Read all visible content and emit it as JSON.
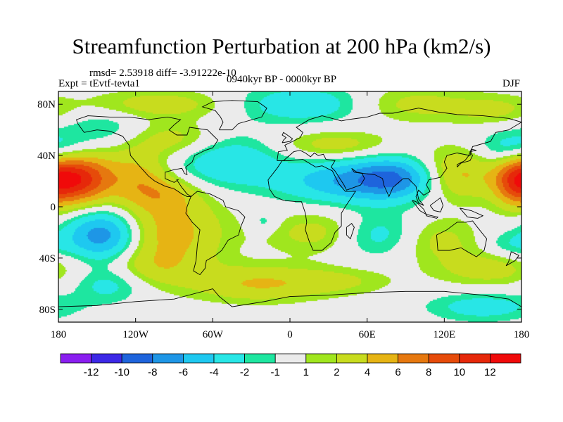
{
  "chart_data": {
    "type": "heatmap",
    "title": "Streamfunction Perturbation at 200 hPa (km2/s)",
    "stats_text": "rmsd= 2.53918  diff= -3.91222e-10",
    "left_label": "Expt = tEvtf-tevta1",
    "center_label": "0940kyr BP - 0000kyr BP",
    "right_label": "DJF",
    "x_range": [
      -180,
      180
    ],
    "y_range": [
      -90,
      90
    ],
    "x_ticks": [
      {
        "value": -180,
        "label": "180"
      },
      {
        "value": -120,
        "label": "120W"
      },
      {
        "value": -60,
        "label": "60W"
      },
      {
        "value": 0,
        "label": "0"
      },
      {
        "value": 60,
        "label": "60E"
      },
      {
        "value": 120,
        "label": "120E"
      },
      {
        "value": 180,
        "label": "180"
      }
    ],
    "y_ticks": [
      {
        "value": 80,
        "label": "80N"
      },
      {
        "value": 40,
        "label": "40N"
      },
      {
        "value": 0,
        "label": "0"
      },
      {
        "value": -40,
        "label": "40S"
      },
      {
        "value": -80,
        "label": "80S"
      }
    ],
    "colorbar": {
      "levels": [
        -12,
        -10,
        -8,
        -6,
        -4,
        -2,
        -1,
        1,
        2,
        4,
        6,
        8,
        10,
        12
      ],
      "labels": [
        "-12",
        "-10",
        "-8",
        "-6",
        "-4",
        "-2",
        "-1",
        "1",
        "2",
        "4",
        "6",
        "8",
        "10",
        "12"
      ],
      "colors": [
        "#8a1ef0",
        "#3c28e6",
        "#1e64dc",
        "#1e96e6",
        "#1ec8f0",
        "#28e6e6",
        "#1ee6a0",
        "#ebebeb",
        "#a0e61e",
        "#c8dc1e",
        "#e6b414",
        "#e6780f",
        "#e64b0a",
        "#e6280a",
        "#f00a0a"
      ]
    },
    "anomaly_centers": [
      {
        "lon": -165,
        "lat": 22,
        "amp": 11,
        "slon": 18,
        "slat": 14
      },
      {
        "lon": -145,
        "lat": -22,
        "amp": -8,
        "slon": 20,
        "slat": 14
      },
      {
        "lon": -95,
        "lat": -20,
        "amp": 5,
        "slon": 30,
        "slat": 22
      },
      {
        "lon": -120,
        "lat": 25,
        "amp": 4,
        "slon": 18,
        "slat": 14
      },
      {
        "lon": -100,
        "lat": 10,
        "amp": 3,
        "slon": 20,
        "slat": 10
      },
      {
        "lon": -50,
        "lat": 35,
        "amp": -4,
        "slon": 30,
        "slat": 14
      },
      {
        "lon": -90,
        "lat": 52,
        "amp": 3,
        "slon": 25,
        "slat": 10
      },
      {
        "lon": -145,
        "lat": 62,
        "amp": -2,
        "slon": 22,
        "slat": 10
      },
      {
        "lon": -100,
        "lat": 80,
        "amp": 3,
        "slon": 40,
        "slat": 8
      },
      {
        "lon": 15,
        "lat": 80,
        "amp": -4,
        "slon": 40,
        "slat": 10
      },
      {
        "lon": 90,
        "lat": 80,
        "amp": 3,
        "slon": 40,
        "slat": 10
      },
      {
        "lon": 160,
        "lat": 75,
        "amp": 2,
        "slon": 22,
        "slat": 8
      },
      {
        "lon": 50,
        "lat": 20,
        "amp": -6,
        "slon": 40,
        "slat": 12
      },
      {
        "lon": 82,
        "lat": 23,
        "amp": -5,
        "slon": 22,
        "slat": 11
      },
      {
        "lon": 35,
        "lat": 48,
        "amp": 3,
        "slon": 30,
        "slat": 8
      },
      {
        "lon": 130,
        "lat": 25,
        "amp": 5,
        "slon": 22,
        "slat": 14
      },
      {
        "lon": 175,
        "lat": 20,
        "amp": 6,
        "slon": 12,
        "slat": 14
      },
      {
        "lon": 175,
        "lat": 45,
        "amp": -4,
        "slon": 20,
        "slat": 10
      },
      {
        "lon": 25,
        "lat": -20,
        "amp": 3,
        "slon": 30,
        "slat": 12
      },
      {
        "lon": 70,
        "lat": -22,
        "amp": -4,
        "slon": 25,
        "slat": 12
      },
      {
        "lon": 110,
        "lat": -25,
        "amp": 3,
        "slon": 25,
        "slat": 12
      },
      {
        "lon": 155,
        "lat": -48,
        "amp": 3,
        "slon": 30,
        "slat": 10
      },
      {
        "lon": 170,
        "lat": -30,
        "amp": -2,
        "slon": 15,
        "slat": 8
      },
      {
        "lon": -140,
        "lat": -60,
        "amp": -3,
        "slon": 20,
        "slat": 10
      },
      {
        "lon": -110,
        "lat": -48,
        "amp": 2,
        "slon": 25,
        "slat": 10
      },
      {
        "lon": -25,
        "lat": -60,
        "amp": 4,
        "slon": 35,
        "slat": 10
      },
      {
        "lon": 40,
        "lat": -58,
        "amp": 2,
        "slon": 30,
        "slat": 8
      },
      {
        "lon": 150,
        "lat": -78,
        "amp": -3,
        "slon": 30,
        "slat": 8
      },
      {
        "lon": -20,
        "lat": -12,
        "amp": -2,
        "slon": 8,
        "slat": 6
      }
    ]
  }
}
